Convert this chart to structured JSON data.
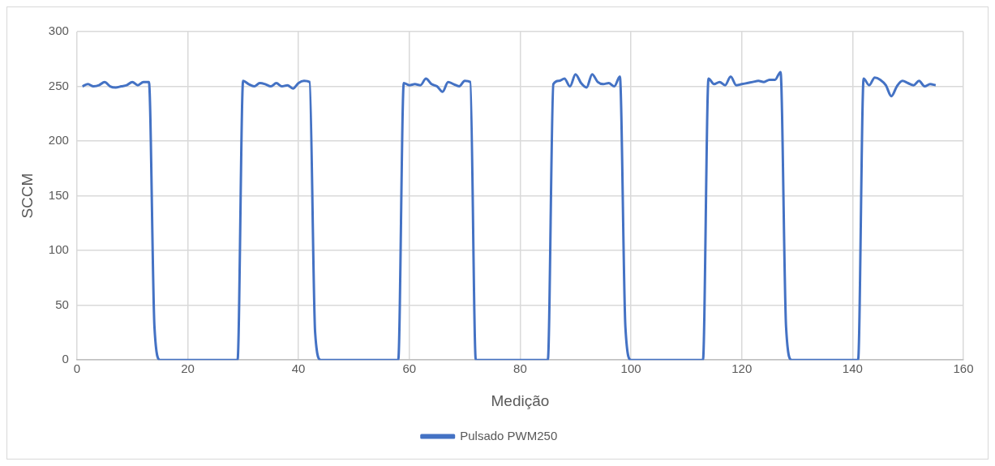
{
  "chart_data": {
    "type": "line",
    "xlabel": "Medição",
    "ylabel": "SCCM",
    "xlim": [
      0,
      160
    ],
    "xticks": [
      0,
      20,
      40,
      60,
      80,
      100,
      120,
      140,
      160
    ],
    "ylim": [
      0,
      300
    ],
    "yticks": [
      0,
      50,
      100,
      150,
      200,
      250,
      300
    ],
    "grid": true,
    "legend": "bottom",
    "marker": "none",
    "line_style": "solid",
    "series": [
      {
        "name": "Pulsado PWM250",
        "color": "#4472c4",
        "x": [
          1,
          2,
          3,
          4,
          5,
          6,
          7,
          8,
          9,
          10,
          11,
          12,
          13,
          14,
          15,
          29,
          30,
          31,
          32,
          33,
          34,
          35,
          36,
          37,
          38,
          39,
          40,
          41,
          42,
          43,
          44,
          58,
          59,
          60,
          61,
          62,
          63,
          64,
          65,
          66,
          67,
          68,
          69,
          70,
          71,
          72,
          85,
          86,
          87,
          88,
          89,
          90,
          91,
          92,
          93,
          94,
          95,
          96,
          97,
          98,
          99,
          100,
          113,
          114,
          115,
          116,
          117,
          118,
          119,
          120,
          121,
          122,
          123,
          124,
          125,
          126,
          127,
          128,
          129,
          141,
          142,
          143,
          144,
          145,
          146,
          147,
          148,
          149,
          150,
          151,
          152,
          153,
          154,
          155
        ],
        "values": [
          250,
          252,
          250,
          251,
          254,
          250,
          249,
          250,
          251,
          254,
          251,
          254,
          254,
          30,
          0,
          0,
          255,
          252,
          250,
          253,
          252,
          250,
          253,
          250,
          251,
          248,
          253,
          255,
          254,
          25,
          0,
          0,
          253,
          251,
          252,
          251,
          257,
          252,
          250,
          245,
          254,
          252,
          250,
          255,
          254,
          0,
          0,
          252,
          255,
          257,
          250,
          261,
          253,
          249,
          261,
          254,
          252,
          253,
          250,
          259,
          30,
          0,
          0,
          257,
          252,
          254,
          251,
          259,
          251,
          252,
          253,
          254,
          255,
          254,
          256,
          256,
          263,
          30,
          0,
          0,
          257,
          251,
          258,
          256,
          251,
          241,
          250,
          255,
          253,
          251,
          255,
          250,
          252,
          251
        ]
      }
    ]
  }
}
